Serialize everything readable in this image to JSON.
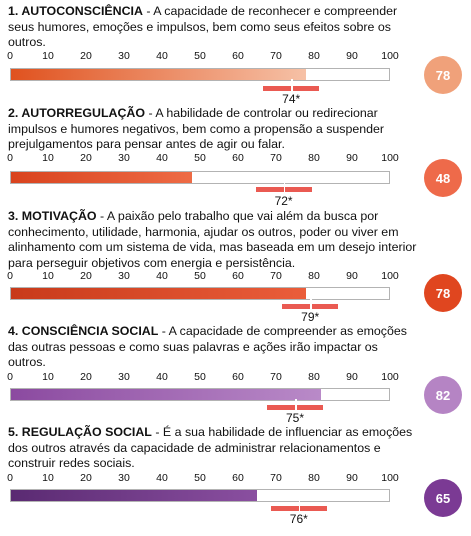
{
  "axis_ticks": [
    "0",
    "10",
    "20",
    "30",
    "40",
    "50",
    "60",
    "70",
    "80",
    "90",
    "100"
  ],
  "sections": [
    {
      "title": "1.  AUTOCONSCIÊNCIA",
      "text": " - A capacidade de reconhecer e compreender seus humores, emoções e impulsos, bem como seus efeitos sobre os outros.",
      "score": 78,
      "score_label": "78",
      "benchmark": 74,
      "benchmark_label": "74*",
      "fill_gradient": [
        "#e0521f",
        "#f6c1a6"
      ],
      "badge_color": "#f0a17a"
    },
    {
      "title": "2.  AUTORREGULAÇÃO",
      "text": " - A habilidade de controlar ou redirecionar impulsos e humores negativos, bem como a propensão a suspender prejulgamentos para pensar antes de agir ou falar.",
      "score": 48,
      "score_label": "48",
      "benchmark": 72,
      "benchmark_label": "72*",
      "fill_gradient": [
        "#d9431e",
        "#ee6b45"
      ],
      "badge_color": "#ee6a4a"
    },
    {
      "title": "3.  MOTIVAÇÃO",
      "text": " - A paixão pelo trabalho que vai além da busca por conhecimento, utilidade, harmonia, ajudar os outros, poder ou viver em alinhamento com um sistema de vida, mas baseada em um desejo interior para perseguir objetivos com energia e persistência.",
      "score": 78,
      "score_label": "78",
      "benchmark": 79,
      "benchmark_label": "79*",
      "fill_gradient": [
        "#c83a1a",
        "#ea5d3a"
      ],
      "badge_color": "#e0461f"
    },
    {
      "title": "4.  CONSCIÊNCIA SOCIAL",
      "text": " - A capacidade de compreender as emoções das outras pessoas e como suas palavras e ações irão impactar os outros.",
      "score": 82,
      "score_label": "82",
      "benchmark": 75,
      "benchmark_label": "75*",
      "fill_gradient": [
        "#8b4aa0",
        "#b98ac8"
      ],
      "badge_color": "#b584c4"
    },
    {
      "title": "5.  REGULAÇÃO SOCIAL",
      "text": " - É a sua habilidade de influenciar as emoções dos outros através da capacidade de administrar relacionamentos e construir redes sociais.",
      "score": 65,
      "score_label": "65",
      "benchmark": 76,
      "benchmark_label": "76*",
      "fill_gradient": [
        "#5a2a72",
        "#8a4fa0"
      ],
      "badge_color": "#7b3a94"
    }
  ]
}
